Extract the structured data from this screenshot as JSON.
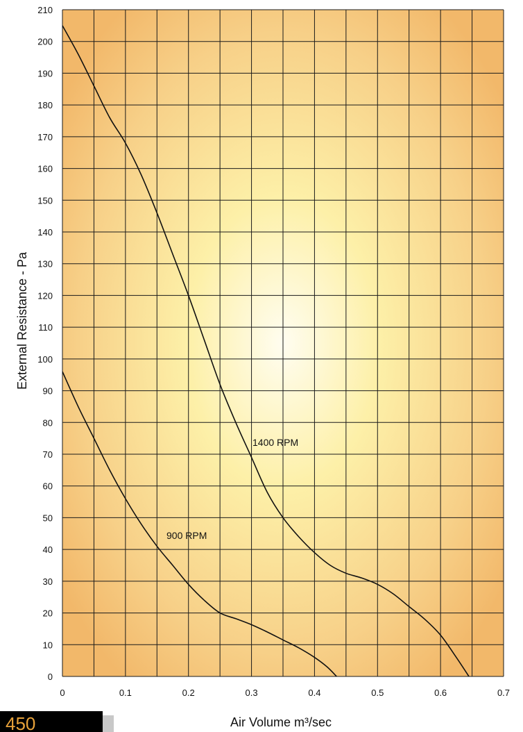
{
  "chart_data": {
    "type": "line",
    "xlabel": "Air Volume m³/sec",
    "ylabel": "External Resistance - Pa",
    "xlim": [
      0,
      0.7
    ],
    "ylim": [
      0,
      210
    ],
    "x_ticks": [
      "0",
      "0.1",
      "0.2",
      "0.3",
      "0.4",
      "0.5",
      "0.6",
      "0.7"
    ],
    "y_ticks": [
      "0",
      "10",
      "20",
      "30",
      "40",
      "50",
      "60",
      "70",
      "80",
      "90",
      "100",
      "110",
      "120",
      "130",
      "140",
      "150",
      "160",
      "170",
      "180",
      "190",
      "200",
      "210"
    ],
    "grid": true,
    "series": [
      {
        "name": "1400 RPM",
        "points": [
          [
            0,
            205
          ],
          [
            0.025,
            196
          ],
          [
            0.05,
            186
          ],
          [
            0.075,
            176
          ],
          [
            0.1,
            168
          ],
          [
            0.125,
            158
          ],
          [
            0.15,
            146
          ],
          [
            0.175,
            133
          ],
          [
            0.2,
            120
          ],
          [
            0.225,
            106
          ],
          [
            0.25,
            92
          ],
          [
            0.275,
            80
          ],
          [
            0.3,
            69
          ],
          [
            0.325,
            58
          ],
          [
            0.35,
            50
          ],
          [
            0.375,
            44
          ],
          [
            0.4,
            39
          ],
          [
            0.425,
            35
          ],
          [
            0.45,
            32.5
          ],
          [
            0.475,
            31
          ],
          [
            0.5,
            29
          ],
          [
            0.525,
            26
          ],
          [
            0.55,
            22
          ],
          [
            0.575,
            18
          ],
          [
            0.6,
            13
          ],
          [
            0.625,
            6
          ],
          [
            0.645,
            0
          ]
        ]
      },
      {
        "name": "900 RPM",
        "points": [
          [
            0,
            96
          ],
          [
            0.025,
            85
          ],
          [
            0.05,
            75
          ],
          [
            0.075,
            65
          ],
          [
            0.1,
            56
          ],
          [
            0.125,
            48
          ],
          [
            0.15,
            41
          ],
          [
            0.175,
            35
          ],
          [
            0.2,
            29
          ],
          [
            0.225,
            24
          ],
          [
            0.25,
            20
          ],
          [
            0.275,
            18.2
          ],
          [
            0.3,
            16.3
          ],
          [
            0.325,
            14
          ],
          [
            0.35,
            11.5
          ],
          [
            0.375,
            9
          ],
          [
            0.4,
            6
          ],
          [
            0.42,
            3
          ],
          [
            0.435,
            0
          ]
        ]
      }
    ],
    "annotations": [
      "1400 RPM",
      "900 RPM"
    ]
  },
  "colors": {
    "background_center": "#fffbe6",
    "background_edge": "#f5c27a",
    "grid": "#1a1a1a",
    "curve": "#111111",
    "page_number_bg": "#000000",
    "page_number_text": "#e8a23a"
  },
  "footer": {
    "page_number": "450"
  }
}
